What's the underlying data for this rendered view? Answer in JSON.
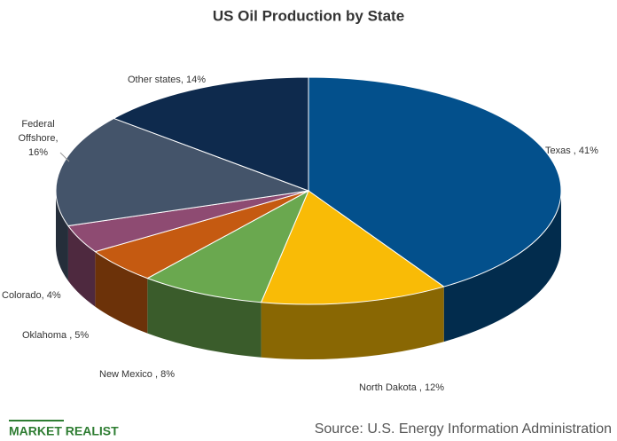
{
  "chart_data": {
    "type": "pie3d",
    "title": "US Oil Production  by State",
    "values": [
      41,
      12,
      8,
      5,
      4,
      16,
      14
    ],
    "labels": [
      [
        "Texas , 41%"
      ],
      [
        "North Dakota , 12%"
      ],
      [
        "New Mexico , 8%"
      ],
      [
        "Oklahoma , 5%"
      ],
      [
        "Colorado, 4%"
      ],
      [
        "Federal",
        "Offshore,",
        "16%"
      ],
      [
        "Other states, 14%"
      ]
    ],
    "colors": [
      "#03508c",
      "#f9bb06",
      "#6aa84f",
      "#c55a11",
      "#8e4b72",
      "#44546a",
      "#0e2a4d"
    ]
  },
  "footer": {
    "brand": "MARKET REALIST",
    "source": "Source: U.S. Energy Information Administration"
  }
}
